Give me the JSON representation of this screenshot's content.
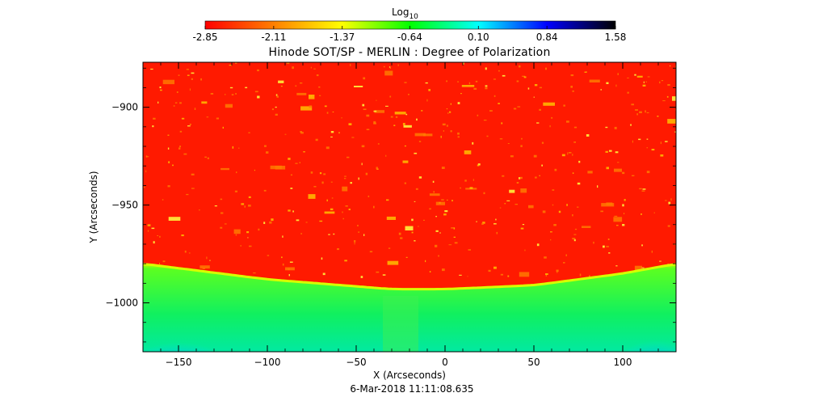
{
  "chart_data": {
    "type": "heatmap",
    "title": "Hinode SOT/SP - MERLIN : Degree of Polarization",
    "colorbar": {
      "label": "Log",
      "label_subscript": "10",
      "ticks": [
        -2.85,
        -2.11,
        -1.37,
        -0.64,
        0.1,
        0.84,
        1.58
      ],
      "tick_labels": [
        "-2.85",
        "-2.11",
        "-1.37",
        "-0.64",
        "0.10",
        "0.84",
        "1.58"
      ],
      "range": [
        -2.85,
        1.58
      ],
      "colormap": [
        "#ff0000",
        "#ff7f00",
        "#ffff00",
        "#00ff00",
        "#00ffff",
        "#0000ff",
        "#000000"
      ]
    },
    "xlabel": "X (Arcseconds)",
    "ylabel": "Y (Arcseconds)",
    "xlim": [
      -170,
      130
    ],
    "ylim": [
      -1025,
      -877
    ],
    "xticks": [
      -150,
      -100,
      -50,
      0,
      50,
      100
    ],
    "xtick_labels": [
      "−150",
      "−100",
      "−50",
      "0",
      "50",
      "100"
    ],
    "yticks": [
      -900,
      -950,
      -1000
    ],
    "ytick_labels": [
      "−900",
      "−950",
      "−1000"
    ],
    "limb": {
      "x": [
        -170,
        -100,
        -30,
        0,
        50,
        100,
        130
      ],
      "y": [
        -980,
        -988,
        -993,
        -993,
        -991,
        -985,
        -980
      ]
    },
    "disk_value": -2.85,
    "offdisk_value": -0.64,
    "timestamp": "6-Mar-2018 11:11:08.635"
  }
}
